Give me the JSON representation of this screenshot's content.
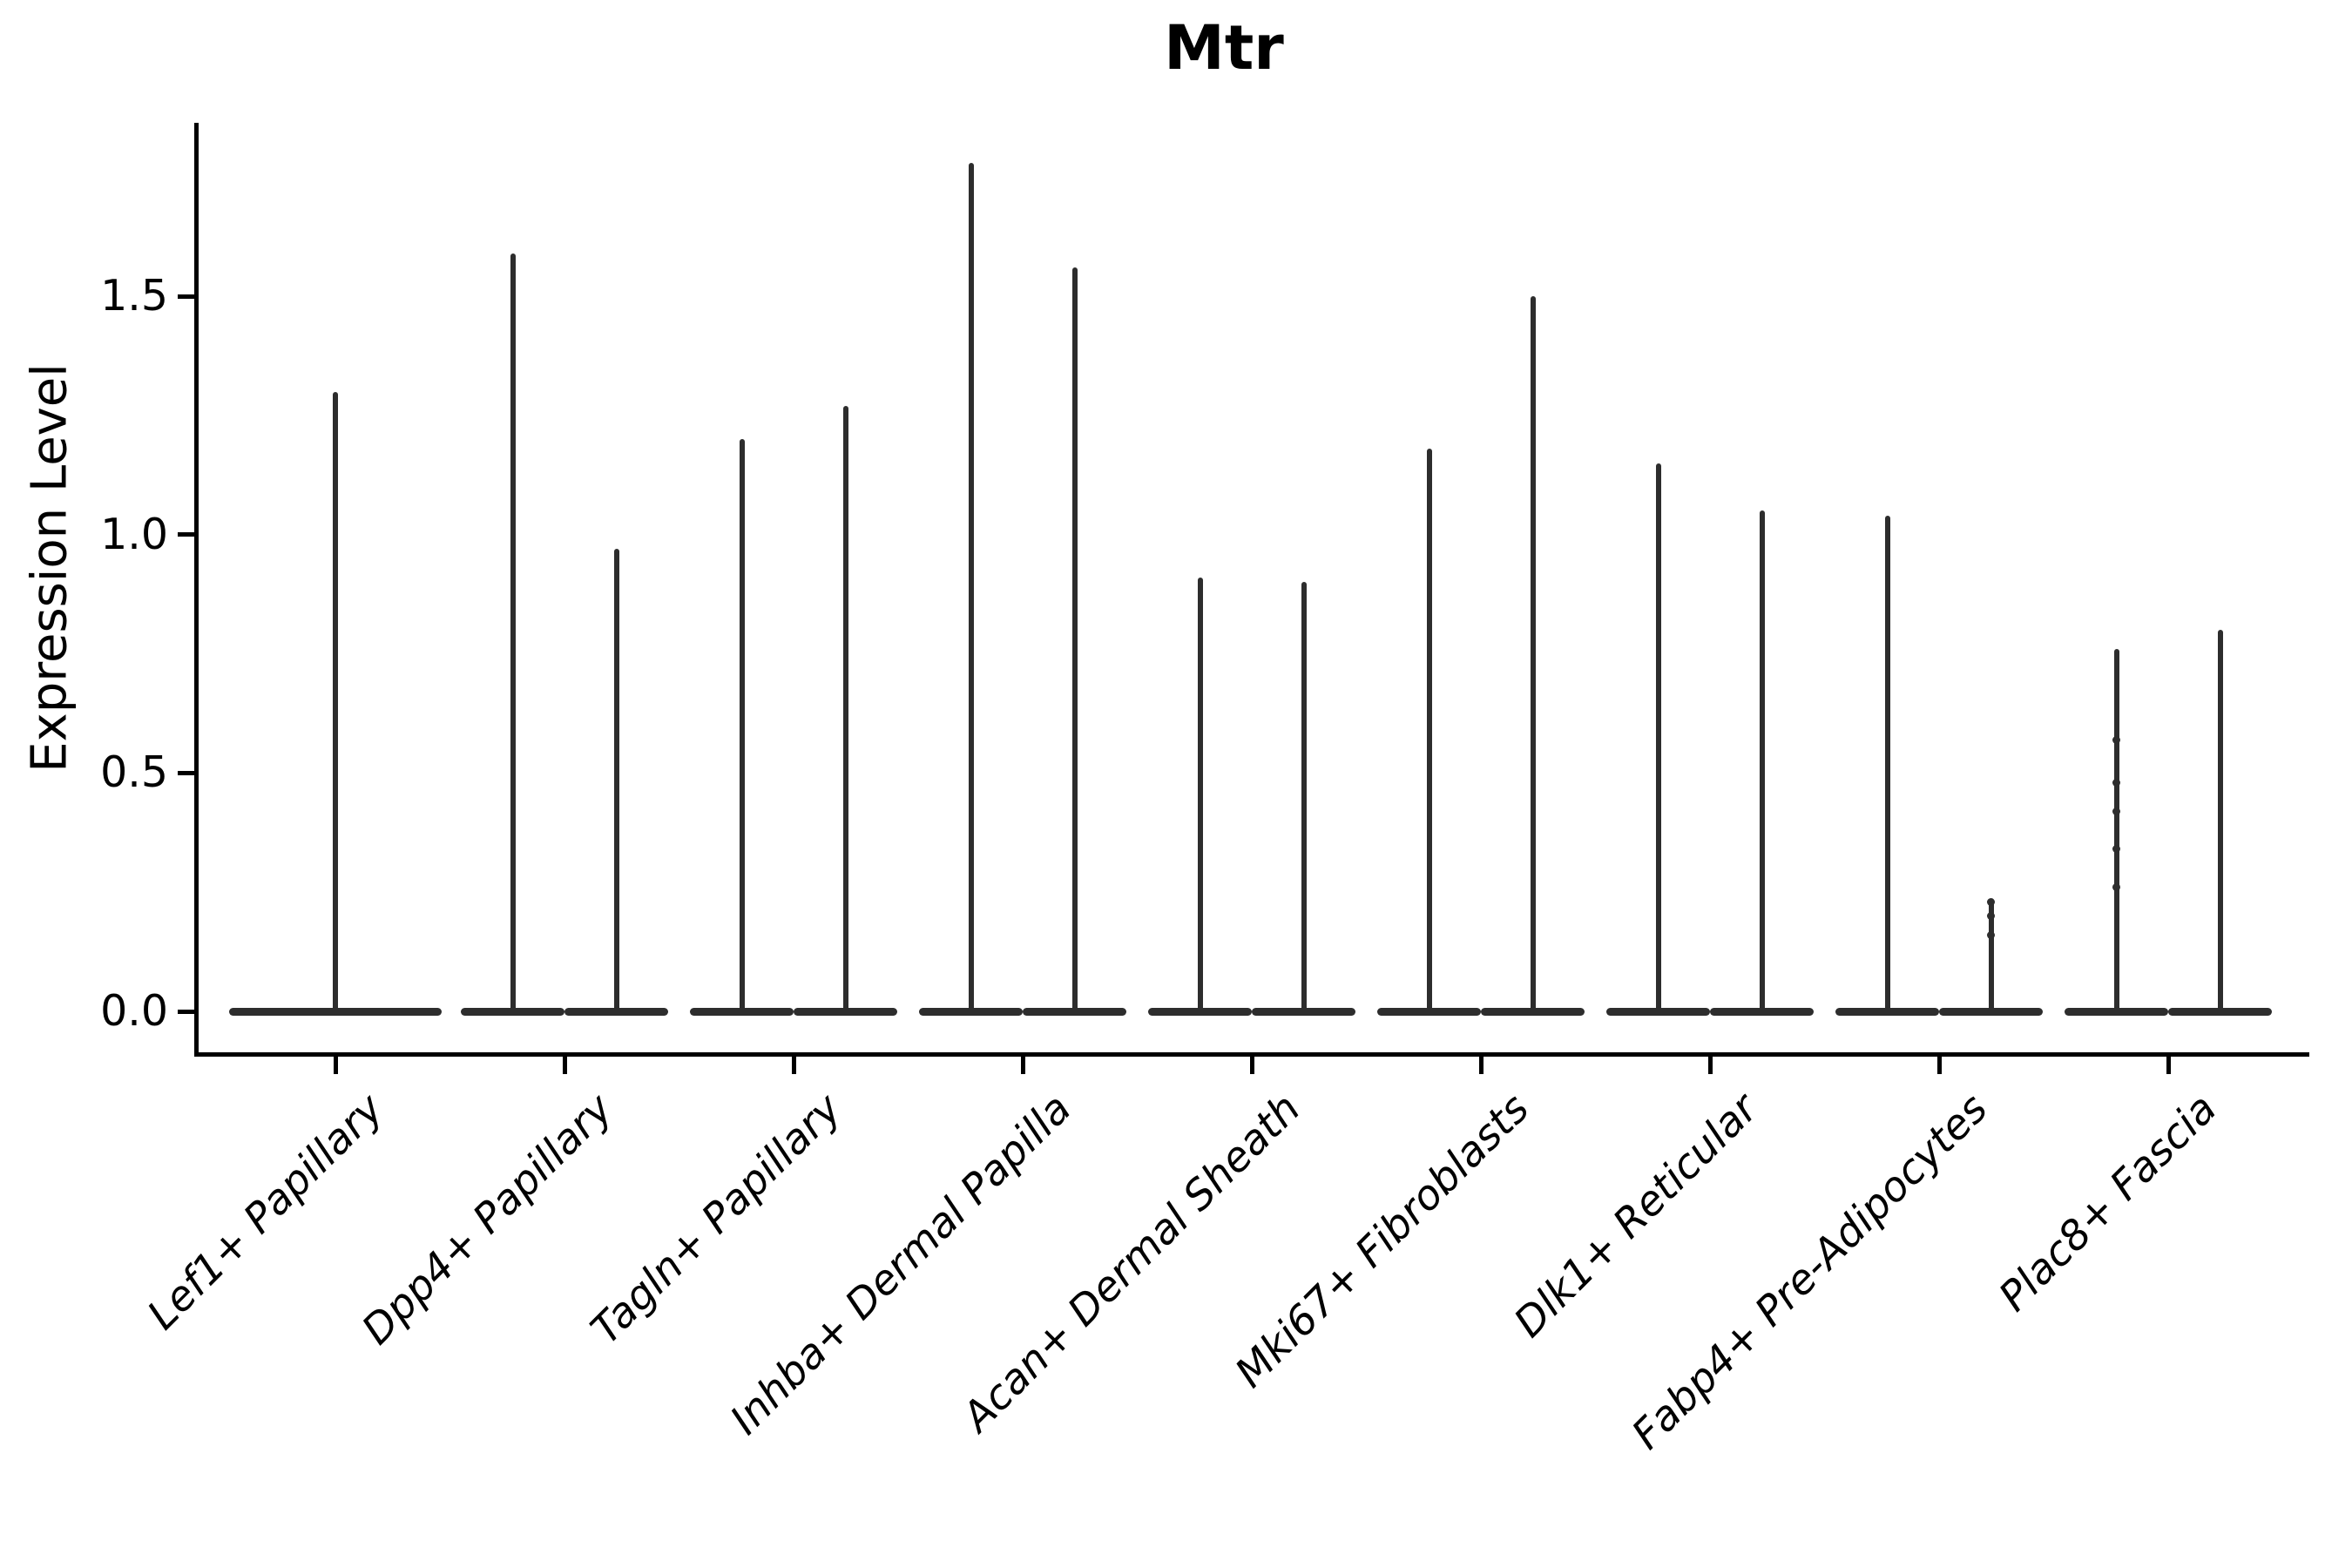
{
  "chart_data": {
    "type": "violin",
    "title": "Mtr",
    "xlabel": "",
    "ylabel": "Expression Level",
    "ylim": [
      0,
      1.87
    ],
    "grid": false,
    "legend": null,
    "yticks": [
      {
        "value": 0.0,
        "label": "0.0"
      },
      {
        "value": 0.5,
        "label": "0.5"
      },
      {
        "value": 1.0,
        "label": "1.0"
      },
      {
        "value": 1.5,
        "label": "1.5"
      }
    ],
    "categories": [
      {
        "label": "Lef1+ Papillary",
        "violins": [
          {
            "max_expression": 1.3,
            "dots": []
          }
        ]
      },
      {
        "label": "Dpp4+ Papillary",
        "violins": [
          {
            "max_expression": 1.59,
            "dots": []
          },
          {
            "max_expression": 0.97,
            "dots": []
          }
        ]
      },
      {
        "label": "Tagln+ Papillary",
        "violins": [
          {
            "max_expression": 1.2,
            "dots": []
          },
          {
            "max_expression": 1.27,
            "dots": []
          }
        ]
      },
      {
        "label": "Inhba+ Dermal Papilla",
        "violins": [
          {
            "max_expression": 1.78,
            "dots": []
          },
          {
            "max_expression": 1.56,
            "dots": []
          }
        ]
      },
      {
        "label": "Acan+ Dermal Sheath",
        "violins": [
          {
            "max_expression": 0.91,
            "dots": []
          },
          {
            "max_expression": 0.9,
            "dots": []
          }
        ]
      },
      {
        "label": "Mki67+ Fibroblasts",
        "violins": [
          {
            "max_expression": 1.18,
            "dots": []
          },
          {
            "max_expression": 1.5,
            "dots": []
          }
        ]
      },
      {
        "label": "Dlk1+ Reticular",
        "violins": [
          {
            "max_expression": 1.15,
            "dots": []
          },
          {
            "max_expression": 1.05,
            "dots": []
          }
        ]
      },
      {
        "label": "Fabp4+ Pre-Adipocytes",
        "violins": [
          {
            "max_expression": 1.04,
            "dots": []
          },
          {
            "max_expression": 0.23,
            "dots": [
              0.23,
              0.2,
              0.16
            ]
          }
        ]
      },
      {
        "label": "Plac8+ Fascia",
        "violins": [
          {
            "max_expression": 0.76,
            "dots": [
              0.57,
              0.48,
              0.42,
              0.34,
              0.26
            ]
          },
          {
            "max_expression": 0.8,
            "dots": []
          }
        ]
      }
    ],
    "style": {
      "stroke_color": "#2d2d2d",
      "axis_color": "#000000",
      "background": "#ffffff",
      "violin_shape": "flat-base-with-spike"
    }
  }
}
